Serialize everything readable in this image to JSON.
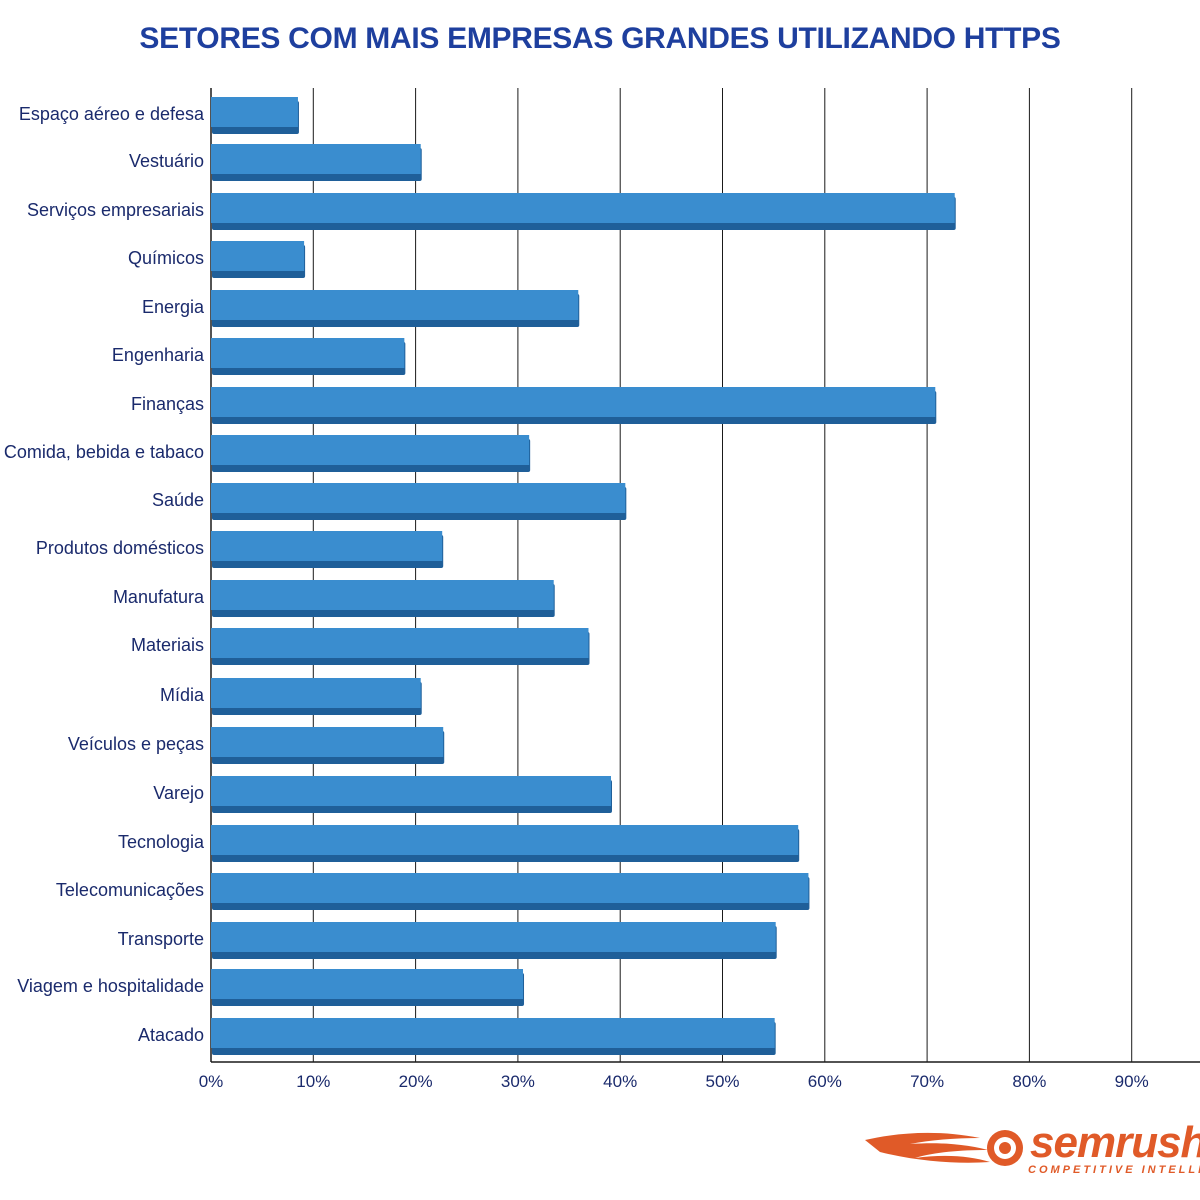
{
  "colors": {
    "title": "#1e3f9e",
    "bar": "#3a8dcf",
    "bar_shadow": "#1f5f99",
    "grid": "#1a1a1a",
    "text": "#1a2a6c",
    "logo": "#e05a28"
  },
  "logo": {
    "icon": "flame-ball-icon",
    "name": "semrush",
    "tagline": "COMPETITIVE INTELLIGENCE"
  },
  "chart_data": {
    "type": "bar",
    "orientation": "horizontal",
    "title": "SETORES COM MAIS EMPRESAS GRANDES UTILIZANDO HTTPS",
    "xlabel": "",
    "ylabel": "",
    "xlim": [
      0,
      100
    ],
    "grid": true,
    "x_ticks": [
      "0%",
      "10%",
      "20%",
      "30%",
      "40%",
      "50%",
      "60%",
      "70%",
      "80%",
      "90%"
    ],
    "categories": [
      "Espaço aéreo e defesa",
      "Vestuário",
      "Serviços empresariais",
      "Químicos",
      "Energia",
      "Engenharia",
      "Finanças",
      "Comida, bebida e tabaco",
      "Saúde",
      "Produtos domésticos",
      "Manufatura",
      "Materiais",
      "Mídia",
      "Veículos e peças",
      "Varejo",
      "Tecnologia",
      "Telecomunicações",
      "Transporte",
      "Viagem e hospitalidade",
      "Atacado"
    ],
    "values": [
      8.5,
      20.5,
      72.7,
      9.1,
      35.9,
      18.9,
      70.8,
      31.1,
      40.5,
      22.6,
      33.5,
      36.9,
      20.5,
      22.7,
      39.1,
      57.4,
      58.4,
      55.2,
      30.5,
      55.1
    ]
  }
}
